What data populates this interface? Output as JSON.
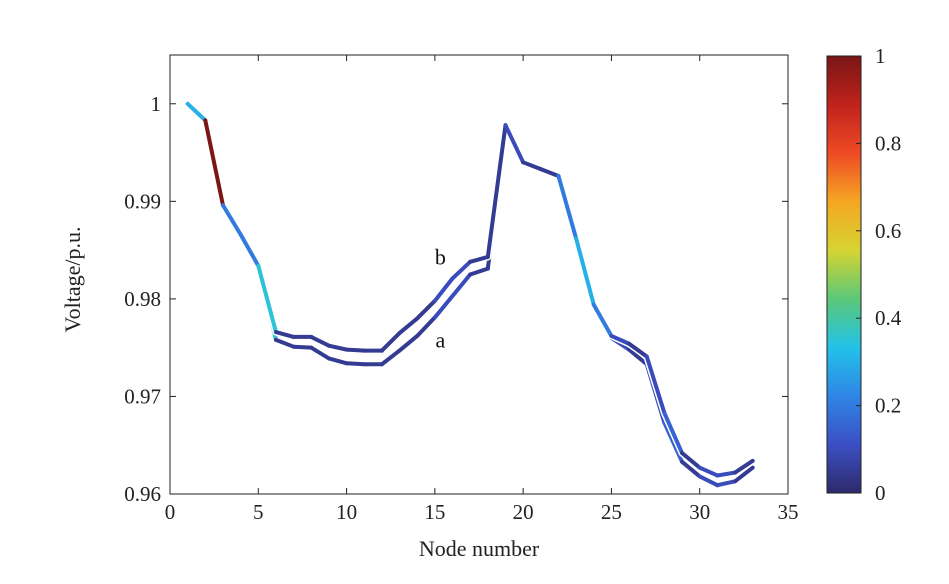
{
  "chart_data": {
    "type": "line",
    "xlabel": "Node number",
    "ylabel": "Voltage/p.u.",
    "xlim": [
      0,
      35
    ],
    "ylim": [
      0.96,
      1.005
    ],
    "xticks": [
      "0",
      "5",
      "10",
      "15",
      "20",
      "25",
      "30",
      "35"
    ],
    "yticks": [
      "0.96",
      "0.97",
      "0.98",
      "0.99",
      "1"
    ],
    "grid": false,
    "colorbar": {
      "ticks": [
        "0",
        "0.2",
        "0.4",
        "0.6",
        "0.8",
        "1"
      ],
      "colors": [
        "#2e2a6b",
        "#3b4fc4",
        "#2f86e6",
        "#22c2e8",
        "#5cc878",
        "#d6d432",
        "#f5a623",
        "#ee4a24",
        "#c0221c",
        "#7a1616"
      ]
    },
    "series": [
      {
        "name": "a",
        "x": [
          1,
          2,
          3,
          4,
          5,
          6,
          7,
          8,
          9,
          10,
          11,
          12,
          13,
          14,
          15,
          16,
          17,
          18,
          19,
          20,
          21,
          22,
          23,
          24,
          25,
          26,
          27,
          28,
          29,
          30,
          31,
          32,
          33
        ],
        "values": [
          1.0,
          0.9983,
          0.9896,
          0.9866,
          0.9834,
          0.9758,
          0.9751,
          0.975,
          0.9739,
          0.9734,
          0.9733,
          0.9733,
          0.9747,
          0.9762,
          0.9781,
          0.9803,
          0.9825,
          0.9831,
          0.9975,
          0.994,
          0.9933,
          0.9926,
          0.9862,
          0.9794,
          0.976,
          0.9748,
          0.9733,
          0.9673,
          0.9633,
          0.9618,
          0.9609,
          0.9613,
          0.9627
        ],
        "segment_colors": [
          0.3,
          1.0,
          0.2,
          0.2,
          0.35,
          0.05,
          0.05,
          0.05,
          0.05,
          0.05,
          0.05,
          0.05,
          0.05,
          0.05,
          0.1,
          0.1,
          0.05,
          0.05,
          0.1,
          0.05,
          0.05,
          0.2,
          0.3,
          0.2,
          0.1,
          0.05,
          0.1,
          0.15,
          0.05,
          0.1,
          0.1,
          0.05
        ]
      },
      {
        "name": "b",
        "x": [
          1,
          2,
          3,
          4,
          5,
          6,
          7,
          8,
          9,
          10,
          11,
          12,
          13,
          14,
          15,
          16,
          17,
          18,
          19,
          20,
          21,
          22,
          23,
          24,
          25,
          26,
          27,
          28,
          29,
          30,
          31,
          32,
          33
        ],
        "values": [
          1.0,
          0.9983,
          0.9896,
          0.9866,
          0.9834,
          0.9766,
          0.9761,
          0.9761,
          0.9752,
          0.9748,
          0.9747,
          0.9747,
          0.9765,
          0.978,
          0.9798,
          0.9821,
          0.9838,
          0.9843,
          0.9978,
          0.994,
          0.9933,
          0.9926,
          0.9862,
          0.9794,
          0.9762,
          0.9754,
          0.9741,
          0.9683,
          0.9642,
          0.9627,
          0.9619,
          0.9622,
          0.9634
        ],
        "segment_colors": [
          0.3,
          1.0,
          0.2,
          0.2,
          0.35,
          0.05,
          0.05,
          0.05,
          0.05,
          0.05,
          0.05,
          0.05,
          0.05,
          0.05,
          0.1,
          0.1,
          0.05,
          0.05,
          0.1,
          0.05,
          0.05,
          0.2,
          0.3,
          0.2,
          0.1,
          0.05,
          0.1,
          0.15,
          0.05,
          0.1,
          0.1,
          0.05
        ]
      }
    ],
    "annotations": [
      {
        "text": "b",
        "x": 15.2,
        "y": 0.9835
      },
      {
        "text": "a",
        "x": 15.2,
        "y": 0.975
      }
    ]
  }
}
